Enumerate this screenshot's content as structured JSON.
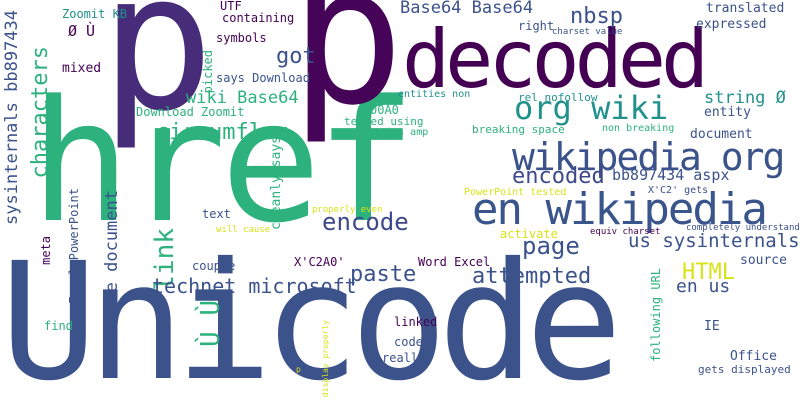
{
  "words": [
    {
      "text": "Unicode",
      "color": "#3b528b"
    },
    {
      "text": "href",
      "color": "#2db27d"
    },
    {
      "text": "p",
      "color": "#472c7a"
    },
    {
      "text": "p",
      "color": "#450457"
    },
    {
      "text": "decoded",
      "color": "#440154"
    },
    {
      "text": "en wikipedia",
      "color": "#39558c"
    },
    {
      "text": "wikipedia org",
      "color": "#3b528b"
    },
    {
      "text": "org wiki",
      "color": "#21918c"
    },
    {
      "text": "got",
      "color": "#3b528b"
    },
    {
      "text": "circumflex",
      "color": "#2db27d"
    },
    {
      "text": "characters",
      "color": "#2db27d"
    },
    {
      "text": "sysinternals bb897434",
      "color": "#3b528b"
    },
    {
      "text": "link",
      "color": "#2db27d"
    },
    {
      "text": "encode",
      "color": "#3e4989"
    },
    {
      "text": "encoded",
      "color": "#3e4989"
    },
    {
      "text": "page",
      "color": "#3b528b"
    },
    {
      "text": "attempted",
      "color": "#3b528b"
    },
    {
      "text": "paste",
      "color": "#3b528b"
    },
    {
      "text": "HTML",
      "color": "#d8e219"
    },
    {
      "text": "technet microsoft",
      "color": "#3b528b"
    },
    {
      "text": "Office document",
      "color": "#3b528b"
    },
    {
      "text": "us sysinternals",
      "color": "#3b528b"
    },
    {
      "text": "en us",
      "color": "#3b528b"
    },
    {
      "text": "Base64 Base64",
      "color": "#3b528b"
    },
    {
      "text": "nbsp",
      "color": "#3b528b"
    },
    {
      "text": "wiki Base64",
      "color": "#2db27d"
    },
    {
      "text": "string Ø",
      "color": "#21918c"
    },
    {
      "text": "bb897434 aspx",
      "color": "#3b528b"
    },
    {
      "text": "Ø Ù",
      "color": "#440154"
    },
    {
      "text": "Ù Ù",
      "color": "#2db27d"
    },
    {
      "text": "Zoomit KB",
      "color": "#21918c"
    },
    {
      "text": "mixed",
      "color": "#440154"
    },
    {
      "text": "UTF",
      "color": "#440154"
    },
    {
      "text": "containing",
      "color": "#440154"
    },
    {
      "text": "symbols",
      "color": "#440154"
    },
    {
      "text": "picked",
      "color": "#2db27d"
    },
    {
      "text": "says Download",
      "color": "#3b528b"
    },
    {
      "text": "Download Zoomit",
      "color": "#2db27d"
    },
    {
      "text": "00A0",
      "color": "#2db27d"
    },
    {
      "text": "right",
      "color": "#3b528b"
    },
    {
      "text": "charset value",
      "color": "#3b528b"
    },
    {
      "text": "translated",
      "color": "#3b528b"
    },
    {
      "text": "expressed",
      "color": "#3b528b"
    },
    {
      "text": "rel nofollow",
      "color": "#21918c"
    },
    {
      "text": "entities non",
      "color": "#21918c"
    },
    {
      "text": "tested using",
      "color": "#2db27d"
    },
    {
      "text": "contains amp",
      "color": "#2db27d"
    },
    {
      "text": "breaking space",
      "color": "#2db27d"
    },
    {
      "text": "non breaking",
      "color": "#2db27d"
    },
    {
      "text": "entity",
      "color": "#3b528b"
    },
    {
      "text": "document",
      "color": "#3b528b"
    },
    {
      "text": "X'C2' gets",
      "color": "#3b528b"
    },
    {
      "text": "PowerPoint tested",
      "color": "#d8e219"
    },
    {
      "text": "properly even",
      "color": "#d8e219"
    },
    {
      "text": "will cause",
      "color": "#d8e219"
    },
    {
      "text": "cleanly says",
      "color": "#2db27d"
    },
    {
      "text": "text",
      "color": "#3b528b"
    },
    {
      "text": "Excel PowerPoint",
      "color": "#3b528b"
    },
    {
      "text": "meta",
      "color": "#440154"
    },
    {
      "text": "couple",
      "color": "#3b528b"
    },
    {
      "text": "X'C2A0'",
      "color": "#440154"
    },
    {
      "text": "Word Excel",
      "color": "#440154"
    },
    {
      "text": "activate",
      "color": "#d8e219"
    },
    {
      "text": "equiv charset",
      "color": "#440154"
    },
    {
      "text": "completely understand",
      "color": "#3b528b"
    },
    {
      "text": "source",
      "color": "#3b528b"
    },
    {
      "text": "find",
      "color": "#2db27d"
    },
    {
      "text": "linked",
      "color": "#440154"
    },
    {
      "text": "code",
      "color": "#3b528b"
    },
    {
      "text": "really",
      "color": "#3b528b"
    },
    {
      "text": "following URL",
      "color": "#2db27d"
    },
    {
      "text": "IE",
      "color": "#3b528b"
    },
    {
      "text": "Office",
      "color": "#3b528b"
    },
    {
      "text": "gets displayed",
      "color": "#3b528b"
    },
    {
      "text": "display properly",
      "color": "#d8e219"
    },
    {
      "text": "p",
      "color": "#d8e219"
    }
  ]
}
